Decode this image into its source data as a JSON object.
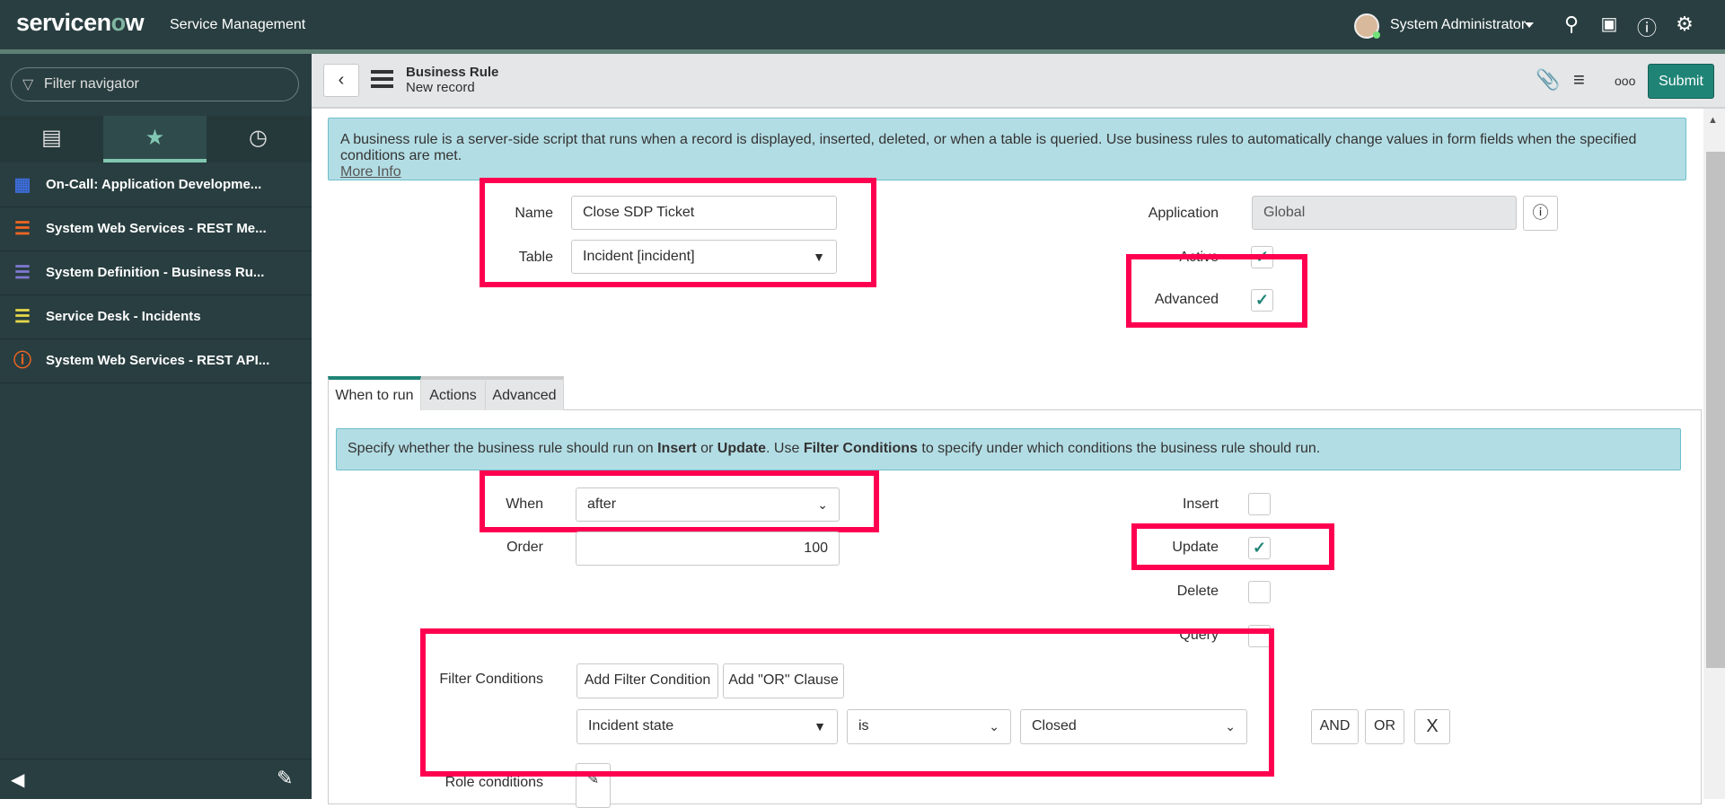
{
  "topbar": {
    "logo": "servicenow",
    "app_name": "Service Management",
    "user": "System Administrator",
    "icons": [
      "search-icon",
      "chat-icon",
      "help-icon",
      "gear-icon"
    ]
  },
  "sidebar": {
    "filter_placeholder": "Filter navigator",
    "tabs": [
      "archive-icon",
      "star-icon",
      "clock-icon"
    ],
    "active_tab": "star",
    "items": [
      {
        "label": "On-Call: Application Developme...",
        "icon": "calendar-icon",
        "color": "#3d6cd9"
      },
      {
        "label": "System Web Services - REST Me...",
        "icon": "list-icon",
        "color": "#f26522"
      },
      {
        "label": "System Definition - Business Ru...",
        "icon": "list-icon",
        "color": "#7f78d2"
      },
      {
        "label": "Service Desk - Incidents",
        "icon": "list-icon",
        "color": "#e6d84a"
      },
      {
        "label": "System Web Services - REST API...",
        "icon": "info-icon",
        "color": "#f26522"
      }
    ]
  },
  "header": {
    "title": "Business Rule",
    "subtitle": "New record",
    "submit": "Submit"
  },
  "info": {
    "text": "A business rule is a server-side script that runs when a record is displayed, inserted, deleted, or when a table is queried. Use business rules to automatically change values in form fields when the specified conditions are met.",
    "more": "More Info"
  },
  "form": {
    "name_label": "Name",
    "name_value": "Close SDP Ticket",
    "table_label": "Table",
    "table_value": "Incident [incident]",
    "application_label": "Application",
    "application_value": "Global",
    "active_label": "Active",
    "active_checked": true,
    "advanced_label": "Advanced",
    "advanced_checked": true
  },
  "tabs": [
    "When to run",
    "Actions",
    "Advanced"
  ],
  "when": {
    "info_parts": [
      "Specify whether the business rule should run on ",
      "Insert",
      " or ",
      "Update",
      ". Use ",
      "Filter Conditions",
      " to specify under which conditions the business rule should run."
    ],
    "when_label": "When",
    "when_value": "after",
    "order_label": "Order",
    "order_value": "100",
    "insert_label": "Insert",
    "insert_checked": false,
    "update_label": "Update",
    "update_checked": true,
    "delete_label": "Delete",
    "delete_checked": false,
    "query_label": "Query",
    "query_checked": false,
    "filter_label": "Filter Conditions",
    "add_filter": "Add Filter Condition",
    "add_or": "Add \"OR\" Clause",
    "condition": {
      "field": "Incident state",
      "operator": "is",
      "value": "Closed"
    },
    "and": "AND",
    "or": "OR",
    "remove": "X",
    "role_label": "Role conditions"
  }
}
